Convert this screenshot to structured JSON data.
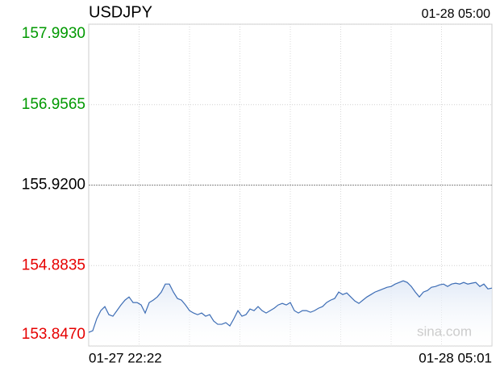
{
  "chart_data": {
    "type": "line",
    "title": "USDJPY",
    "timestamp": "01-28 05:00",
    "watermark": "sina.com",
    "ylim": [
      153.847,
      157.993
    ],
    "yticks": [
      {
        "value": 153.847,
        "label": "153.8470"
      },
      {
        "value": 154.8835,
        "label": "154.8835"
      },
      {
        "value": 155.92,
        "label": "155.9200"
      },
      {
        "value": 156.9565,
        "label": "156.9565"
      },
      {
        "value": 157.993,
        "label": "157.9930"
      }
    ],
    "up_color": "#009900",
    "down_color": "#e60000",
    "base_color": "#000000",
    "line_color": "#3d6db5",
    "grid": true,
    "x_grid_divisions": 8,
    "categories": [
      "01-27 22:22",
      null,
      null,
      null,
      null,
      null,
      null,
      null,
      null,
      null,
      null,
      null,
      null,
      null,
      null,
      null,
      null,
      null,
      null,
      null,
      null,
      null,
      null,
      null,
      null,
      null,
      null,
      null,
      null,
      null,
      null,
      null,
      null,
      null,
      null,
      null,
      null,
      null,
      null,
      null,
      null,
      null,
      null,
      null,
      null,
      null,
      null,
      null,
      null,
      null,
      null,
      null,
      null,
      null,
      null,
      null,
      null,
      null,
      null,
      null,
      null,
      null,
      null,
      null,
      null,
      null,
      null,
      null,
      null,
      null,
      null,
      null,
      null,
      null,
      null,
      null,
      null,
      null,
      null,
      null,
      null,
      null,
      null,
      null,
      null,
      null,
      null,
      null,
      null,
      null,
      null,
      null,
      null,
      null,
      null,
      null,
      null,
      null,
      null,
      null,
      "01-28 05:01"
    ],
    "values": [
      154.023,
      154.044,
      154.199,
      154.303,
      154.355,
      154.251,
      154.231,
      154.303,
      154.376,
      154.438,
      154.479,
      154.407,
      154.407,
      154.376,
      154.272,
      154.407,
      154.438,
      154.479,
      154.542,
      154.645,
      154.645,
      154.542,
      154.459,
      154.438,
      154.376,
      154.303,
      154.272,
      154.251,
      154.272,
      154.231,
      154.251,
      154.168,
      154.127,
      154.127,
      154.148,
      154.106,
      154.199,
      154.303,
      154.231,
      154.251,
      154.324,
      154.303,
      154.355,
      154.303,
      154.272,
      154.303,
      154.334,
      154.376,
      154.396,
      154.376,
      154.407,
      154.303,
      154.272,
      154.303,
      154.303,
      154.282,
      154.303,
      154.334,
      154.355,
      154.407,
      154.438,
      154.459,
      154.542,
      154.51,
      154.531,
      154.479,
      154.427,
      154.396,
      154.438,
      154.479,
      154.51,
      154.542,
      154.562,
      154.583,
      154.604,
      154.614,
      154.645,
      154.666,
      154.687,
      154.666,
      154.614,
      154.542,
      154.479,
      154.542,
      154.562,
      154.604,
      154.614,
      154.635,
      154.645,
      154.614,
      154.645,
      154.656,
      154.645,
      154.666,
      154.645,
      154.656,
      154.666,
      154.614,
      154.645,
      154.583,
      154.593
    ]
  }
}
